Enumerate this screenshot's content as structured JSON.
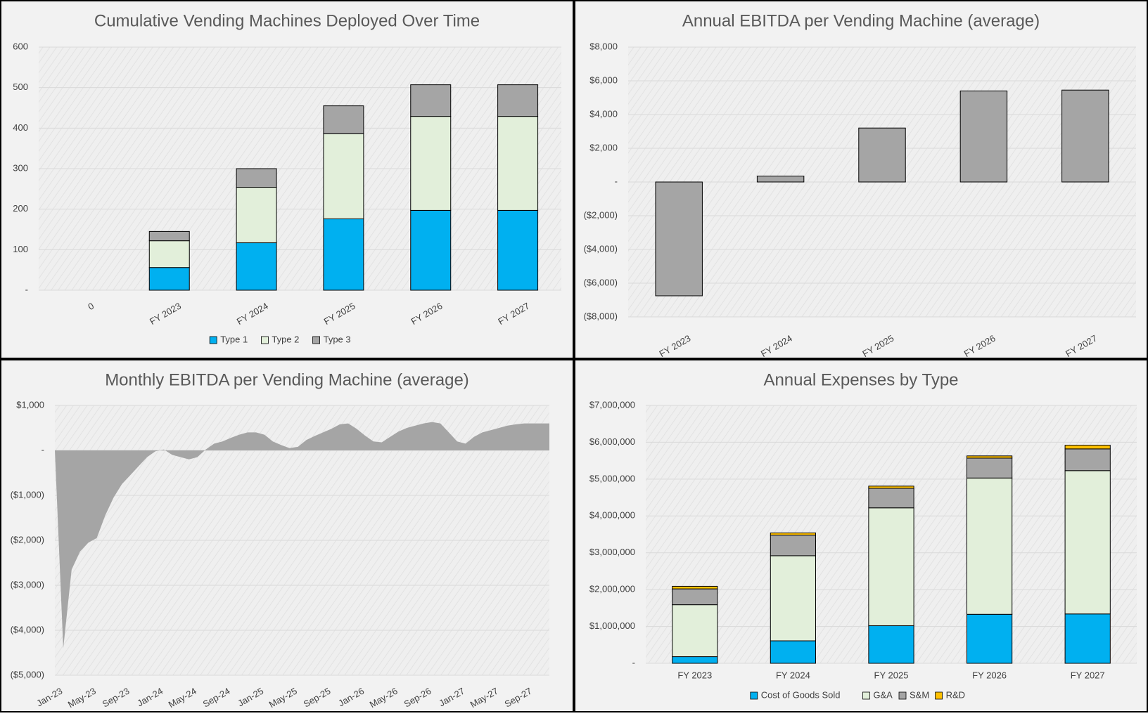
{
  "chart_data": [
    {
      "id": "cumulative",
      "type": "bar",
      "stacked": true,
      "title": "Cumulative Vending Machines Deployed Over Time",
      "categories": [
        "0",
        "FY 2023",
        "FY 2024",
        "FY 2025",
        "FY 2026",
        "FY 2027"
      ],
      "series": [
        {
          "name": "Type 1",
          "values": [
            0,
            56,
            117,
            176,
            197,
            197
          ],
          "color": "#00B0F0"
        },
        {
          "name": "Type 2",
          "values": [
            0,
            66,
            137,
            210,
            232,
            232
          ],
          "color": "#E2EFDA"
        },
        {
          "name": "Type 3",
          "values": [
            0,
            23,
            46,
            69,
            78,
            78
          ],
          "color": "#A5A5A5"
        }
      ],
      "ylim": [
        0,
        600
      ],
      "yticks": [
        0,
        100,
        200,
        300,
        400,
        500,
        600
      ],
      "ytick_labels": [
        "-",
        "100",
        "200",
        "300",
        "400",
        "500",
        "600"
      ],
      "grid": true,
      "legend": "bottom",
      "xlabel_rotation": true
    },
    {
      "id": "annual-ebitda",
      "type": "bar",
      "title": "Annual EBITDA per Vending Machine (average)",
      "categories": [
        "FY 2023",
        "FY 2024",
        "FY 2025",
        "FY 2026",
        "FY 2027"
      ],
      "series": [
        {
          "values": [
            -6750,
            350,
            3200,
            5400,
            5450
          ],
          "color": "#A5A5A5"
        }
      ],
      "ylim": [
        -8000,
        8000
      ],
      "yticks": [
        -8000,
        -6000,
        -4000,
        -2000,
        0,
        2000,
        4000,
        6000,
        8000
      ],
      "ytick_labels": [
        "($8,000)",
        "($6,000)",
        "($4,000)",
        "($2,000)",
        "-",
        "$2,000",
        "$4,000",
        "$6,000",
        "$8,000"
      ],
      "grid": true,
      "xlabel_rotation": true
    },
    {
      "id": "monthly-ebitda",
      "type": "area",
      "title": "Monthly EBITDA per Vending Machine (average)",
      "x": [
        "Jan-23",
        "Feb-23",
        "Mar-23",
        "Apr-23",
        "May-23",
        "Jun-23",
        "Jul-23",
        "Aug-23",
        "Sep-23",
        "Oct-23",
        "Nov-23",
        "Dec-23",
        "Jan-24",
        "Feb-24",
        "Mar-24",
        "Apr-24",
        "May-24",
        "Jun-24",
        "Jul-24",
        "Aug-24",
        "Sep-24",
        "Oct-24",
        "Nov-24",
        "Dec-24",
        "Jan-25",
        "Feb-25",
        "Mar-25",
        "Apr-25",
        "May-25",
        "Jun-25",
        "Jul-25",
        "Aug-25",
        "Sep-25",
        "Oct-25",
        "Nov-25",
        "Dec-25",
        "Jan-26",
        "Feb-26",
        "Mar-26",
        "Apr-26",
        "May-26",
        "Jun-26",
        "Jul-26",
        "Aug-26",
        "Sep-26",
        "Oct-26",
        "Nov-26",
        "Dec-26",
        "Jan-27",
        "Feb-27",
        "Mar-27",
        "Apr-27",
        "May-27",
        "Jun-27",
        "Jul-27",
        "Aug-27",
        "Sep-27",
        "Oct-27",
        "Nov-27",
        "Dec-27"
      ],
      "series": [
        {
          "values": [
            0,
            -4400,
            -2650,
            -2250,
            -2050,
            -1950,
            -1450,
            -1050,
            -750,
            -550,
            -350,
            -150,
            -20,
            20,
            -100,
            -150,
            -200,
            -150,
            20,
            150,
            200,
            280,
            350,
            400,
            400,
            350,
            200,
            120,
            50,
            80,
            230,
            320,
            400,
            480,
            580,
            600,
            480,
            330,
            200,
            180,
            300,
            420,
            500,
            550,
            600,
            630,
            600,
            400,
            200,
            150,
            300,
            400,
            450,
            500,
            550,
            580,
            600,
            600,
            600,
            600
          ],
          "color": "#A5A5A5"
        }
      ],
      "ylim": [
        -5000,
        1000
      ],
      "yticks": [
        -5000,
        -4000,
        -3000,
        -2000,
        -1000,
        0,
        1000
      ],
      "ytick_labels": [
        "($5,000)",
        "($4,000)",
        "($3,000)",
        "($2,000)",
        "($1,000)",
        "-",
        "$1,000"
      ],
      "xtick_labels": [
        "Jan-23",
        "May-23",
        "Sep-23",
        "Jan-24",
        "May-24",
        "Sep-24",
        "Jan-25",
        "May-25",
        "Sep-25",
        "Jan-26",
        "May-26",
        "Sep-26",
        "Jan-27",
        "May-27",
        "Sep-27"
      ],
      "grid": true,
      "xlabel_rotation": true
    },
    {
      "id": "annual-expenses",
      "type": "bar",
      "stacked": true,
      "title": "Annual Expenses by Type",
      "categories": [
        "FY 2023",
        "FY 2024",
        "FY 2025",
        "FY 2026",
        "FY 2027"
      ],
      "series": [
        {
          "name": "Cost of Goods Sold",
          "values": [
            180000,
            610000,
            1020000,
            1330000,
            1340000
          ],
          "color": "#00B0F0"
        },
        {
          "name": "G&A",
          "values": [
            1410000,
            2310000,
            3200000,
            3700000,
            3890000
          ],
          "color": "#E2EFDA"
        },
        {
          "name": "S&M",
          "values": [
            430000,
            560000,
            530000,
            540000,
            590000
          ],
          "color": "#A5A5A5"
        },
        {
          "name": "R&D",
          "values": [
            70000,
            60000,
            60000,
            60000,
            100000
          ],
          "color": "#FFC000"
        }
      ],
      "ylim": [
        0,
        7000000
      ],
      "yticks": [
        0,
        1000000,
        2000000,
        3000000,
        4000000,
        5000000,
        6000000,
        7000000
      ],
      "ytick_labels": [
        "-",
        "$1,000,000",
        "$2,000,000",
        "$3,000,000",
        "$4,000,000",
        "$5,000,000",
        "$6,000,000",
        "$7,000,000"
      ],
      "grid": true,
      "legend": "bottom",
      "xlabel_rotation": false
    }
  ],
  "style": {
    "panel_bg": "#F2F2F2",
    "plot_bg": "#EDEDED",
    "border": "#000000",
    "title_color": "#595959",
    "tick_color": "#404040",
    "grid_color": "#D9D9D9"
  }
}
